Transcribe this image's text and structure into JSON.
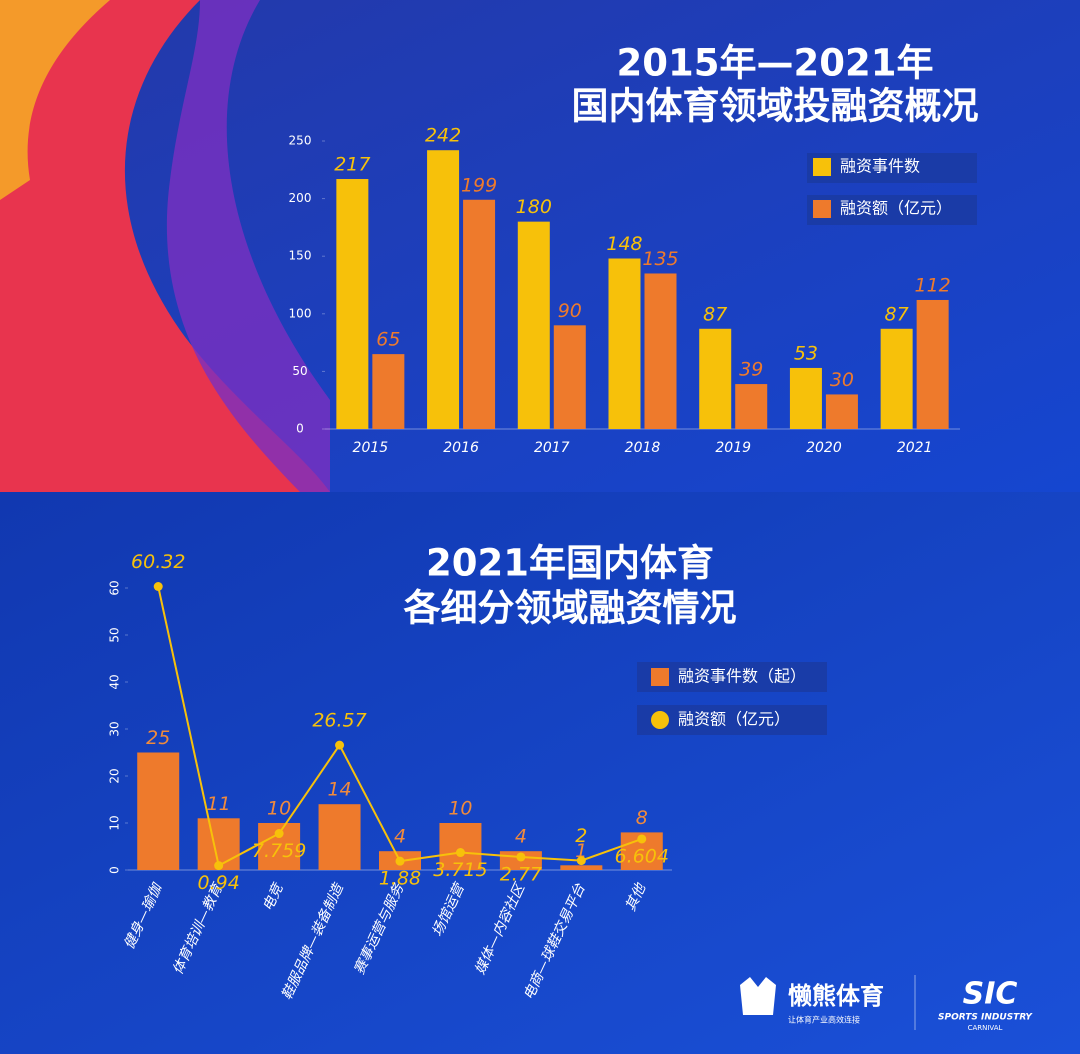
{
  "chart_data": [
    {
      "type": "bar",
      "title": [
        "2015年—2021年",
        "国内体育领域投融资概况"
      ],
      "categories": [
        "2015",
        "2016",
        "2017",
        "2018",
        "2019",
        "2020",
        "2021"
      ],
      "series": [
        {
          "name": "融资事件数",
          "color": "#f7c10a",
          "values": [
            217,
            242,
            180,
            148,
            87,
            53,
            87
          ]
        },
        {
          "name": "融资额（亿元）",
          "color": "#ee7a2c",
          "values": [
            65,
            199,
            90,
            135,
            39,
            30,
            112
          ]
        }
      ],
      "ylim": [
        0,
        250
      ],
      "yticks": [
        0,
        50,
        100,
        150,
        200,
        250
      ]
    },
    {
      "type": "combo",
      "title": [
        "2021年国内体育",
        "各细分领域融资情况"
      ],
      "categories": [
        "健身—瑜伽",
        "体育培训—教育",
        "电竞",
        "鞋服品牌—装备制造",
        "赛事运营与服务",
        "场馆运营",
        "媒体—内容社区",
        "电商—球鞋交易平台",
        "其他"
      ],
      "series": [
        {
          "name": "融资事件数（起）",
          "type": "bar",
          "color": "#ee7a2c",
          "values": [
            25,
            11,
            10,
            14,
            4,
            10,
            4,
            1,
            8
          ]
        },
        {
          "name": "融资额（亿元）",
          "type": "line",
          "color": "#f7c10a",
          "values": [
            60.32,
            0.94,
            7.759,
            26.57,
            1.88,
            3.715,
            2.77,
            2,
            6.604
          ]
        }
      ],
      "ylim": [
        0,
        60
      ],
      "yticks": [
        0,
        10,
        20,
        30,
        40,
        50,
        60
      ]
    }
  ],
  "footer": {
    "brand": "懒熊体育",
    "slogan": "让体育产业高效连接",
    "logo": "SIC",
    "logo_line1": "SPORTS INDUSTRY",
    "logo_line2": "CARNIVAL"
  }
}
